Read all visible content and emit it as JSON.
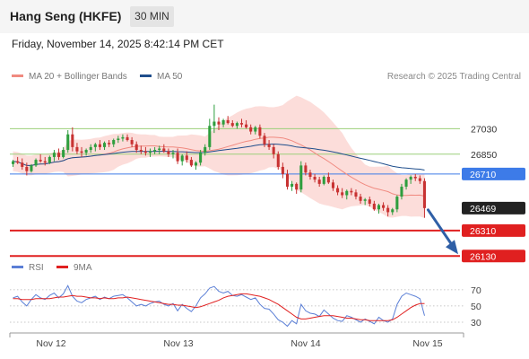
{
  "header": {
    "instrument": "Hang Seng (HKFE)",
    "timeframe": "30 MIN",
    "datetime": "Friday, November 14, 2025 8:42:14 PM CET",
    "copyright": "Research © 2025 Trading Central"
  },
  "legend": {
    "items": [
      {
        "label": "MA 20 + Bollinger Bands",
        "color": "#f08a80"
      },
      {
        "label": "MA 50",
        "color": "#1f4e8c"
      }
    ],
    "rsi_items": [
      {
        "label": "RSI",
        "color": "#5b7fd6"
      },
      {
        "label": "9MA",
        "color": "#e02020"
      }
    ]
  },
  "colors": {
    "up_candle": "#2e9e3e",
    "down_candle": "#c83232",
    "pivot": "#3d7be8",
    "resistance": "#9bcf7a",
    "support": "#e02020",
    "last_price": "#222222",
    "arrow": "#2f5fa6",
    "band": "#fbd7d4"
  },
  "chart_data": [
    {
      "type": "candlestick",
      "ylim": [
        26100,
        27280
      ],
      "x_ticks": [
        "Nov 12",
        "Nov 13",
        "Nov 14",
        "Nov 15"
      ],
      "levels": [
        {
          "value": 27030,
          "label": "27030",
          "kind": "resistance"
        },
        {
          "value": 26850,
          "label": "26850",
          "kind": "resistance"
        },
        {
          "value": 26710,
          "label": "26710",
          "kind": "pivot"
        },
        {
          "value": 26469,
          "label": "26469",
          "kind": "last"
        },
        {
          "value": 26310,
          "label": "26310",
          "kind": "support"
        },
        {
          "value": 26130,
          "label": "26130",
          "kind": "support"
        }
      ],
      "candles": [
        [
          26780,
          26810,
          26760,
          26800
        ],
        [
          26800,
          26830,
          26780,
          26790
        ],
        [
          26790,
          26820,
          26740,
          26760
        ],
        [
          26760,
          26790,
          26700,
          26730
        ],
        [
          26730,
          26780,
          26720,
          26770
        ],
        [
          26770,
          26820,
          26760,
          26810
        ],
        [
          26810,
          26850,
          26790,
          26800
        ],
        [
          26800,
          26830,
          26770,
          26790
        ],
        [
          26790,
          26840,
          26780,
          26830
        ],
        [
          26830,
          26880,
          26800,
          26860
        ],
        [
          26860,
          26890,
          26810,
          26830
        ],
        [
          26830,
          26900,
          26820,
          26880
        ],
        [
          26880,
          27020,
          26860,
          26990
        ],
        [
          26990,
          27040,
          26870,
          26900
        ],
        [
          26900,
          26930,
          26850,
          26870
        ],
        [
          26870,
          26900,
          26830,
          26860
        ],
        [
          26860,
          26890,
          26840,
          26880
        ],
        [
          26880,
          26920,
          26860,
          26900
        ],
        [
          26900,
          26930,
          26870,
          26920
        ],
        [
          26920,
          26950,
          26880,
          26900
        ],
        [
          26900,
          26940,
          26880,
          26930
        ],
        [
          26930,
          26950,
          26900,
          26920
        ],
        [
          26920,
          26960,
          26900,
          26950
        ],
        [
          26950,
          26980,
          26930,
          26960
        ],
        [
          26960,
          26990,
          26940,
          26970
        ],
        [
          26970,
          26990,
          26940,
          26950
        ],
        [
          26950,
          26970,
          26900,
          26920
        ],
        [
          26920,
          26940,
          26860,
          26880
        ],
        [
          26880,
          26910,
          26850,
          26870
        ],
        [
          26870,
          26900,
          26840,
          26860
        ],
        [
          26860,
          26890,
          26830,
          26870
        ],
        [
          26870,
          26900,
          26850,
          26880
        ],
        [
          26880,
          26910,
          26850,
          26890
        ],
        [
          26890,
          26920,
          26860,
          26870
        ],
        [
          26870,
          26890,
          26830,
          26850
        ],
        [
          26850,
          26880,
          26820,
          26860
        ],
        [
          26860,
          26890,
          26780,
          26800
        ],
        [
          26800,
          26850,
          26770,
          26840
        ],
        [
          26840,
          26870,
          26790,
          26810
        ],
        [
          26810,
          26830,
          26760,
          26770
        ],
        [
          26770,
          26800,
          26740,
          26790
        ],
        [
          26790,
          26880,
          26770,
          26860
        ],
        [
          26860,
          26920,
          26840,
          26900
        ],
        [
          26900,
          27100,
          26880,
          27050
        ],
        [
          27050,
          27200,
          27000,
          27080
        ],
        [
          27080,
          27110,
          27020,
          27060
        ],
        [
          27060,
          27100,
          27040,
          27090
        ],
        [
          27090,
          27120,
          27060,
          27070
        ],
        [
          27070,
          27090,
          27040,
          27050
        ],
        [
          27050,
          27080,
          27030,
          27070
        ],
        [
          27070,
          27100,
          27040,
          27060
        ],
        [
          27060,
          27090,
          27030,
          27040
        ],
        [
          27040,
          27060,
          26990,
          27010
        ],
        [
          27010,
          27050,
          26990,
          27040
        ],
        [
          27040,
          27060,
          26960,
          26980
        ],
        [
          26980,
          27000,
          26900,
          26920
        ],
        [
          26920,
          26950,
          26880,
          26900
        ],
        [
          26900,
          26920,
          26820,
          26850
        ],
        [
          26850,
          26870,
          26740,
          26760
        ],
        [
          26760,
          26790,
          26680,
          26710
        ],
        [
          26710,
          26740,
          26600,
          26620
        ],
        [
          26620,
          26660,
          26590,
          26640
        ],
        [
          26640,
          26650,
          26570,
          26600
        ],
        [
          26600,
          26800,
          26580,
          26770
        ],
        [
          26770,
          26790,
          26700,
          26720
        ],
        [
          26720,
          26740,
          26670,
          26690
        ],
        [
          26690,
          26710,
          26650,
          26670
        ],
        [
          26670,
          26690,
          26620,
          26640
        ],
        [
          26640,
          26700,
          26630,
          26690
        ],
        [
          26690,
          26720,
          26640,
          26650
        ],
        [
          26650,
          26670,
          26590,
          26610
        ],
        [
          26610,
          26630,
          26560,
          26580
        ],
        [
          26580,
          26610,
          26540,
          26560
        ],
        [
          26560,
          26600,
          26530,
          26590
        ],
        [
          26590,
          26610,
          26560,
          26580
        ],
        [
          26580,
          26600,
          26530,
          26550
        ],
        [
          26550,
          26570,
          26500,
          26520
        ],
        [
          26520,
          26540,
          26490,
          26530
        ],
        [
          26530,
          26550,
          26480,
          26500
        ],
        [
          26500,
          26520,
          26450,
          26460
        ],
        [
          26460,
          26500,
          26430,
          26490
        ],
        [
          26490,
          26510,
          26450,
          26470
        ],
        [
          26470,
          26490,
          26410,
          26440
        ],
        [
          26440,
          26470,
          26420,
          26460
        ],
        [
          26460,
          26560,
          26440,
          26550
        ],
        [
          26550,
          26640,
          26530,
          26620
        ],
        [
          26620,
          26680,
          26600,
          26670
        ],
        [
          26670,
          26700,
          26640,
          26690
        ],
        [
          26690,
          26710,
          26660,
          26680
        ],
        [
          26680,
          26700,
          26640,
          26660
        ],
        [
          26660,
          26680,
          26400,
          26469
        ]
      ]
    },
    {
      "type": "line",
      "ylim": [
        20,
        82
      ],
      "y_ticks": [
        70,
        50,
        30
      ],
      "series": [
        {
          "name": "RSI",
          "values": [
            60,
            62,
            55,
            50,
            58,
            64,
            60,
            58,
            63,
            66,
            60,
            65,
            75,
            62,
            56,
            54,
            58,
            60,
            62,
            58,
            61,
            59,
            62,
            63,
            64,
            60,
            55,
            50,
            52,
            50,
            53,
            55,
            56,
            52,
            50,
            53,
            44,
            52,
            47,
            43,
            50,
            60,
            65,
            72,
            74,
            68,
            66,
            68,
            63,
            62,
            64,
            61,
            58,
            60,
            52,
            47,
            46,
            40,
            33,
            30,
            25,
            32,
            28,
            52,
            44,
            41,
            40,
            37,
            45,
            40,
            35,
            32,
            31,
            38,
            36,
            33,
            30,
            34,
            31,
            28,
            36,
            32,
            30,
            34,
            52,
            62,
            66,
            64,
            62,
            59,
            38
          ]
        },
        {
          "name": "9MA",
          "values": [
            59,
            59,
            58,
            58,
            58,
            59,
            59,
            59,
            59,
            60,
            61,
            61,
            62,
            63,
            62,
            62,
            61,
            60,
            60,
            59,
            60,
            59,
            59,
            60,
            60,
            61,
            60,
            59,
            58,
            57,
            56,
            55,
            54,
            53,
            52,
            52,
            51,
            51,
            50,
            49,
            48,
            49,
            51,
            53,
            55,
            57,
            60,
            62,
            63,
            64,
            65,
            65,
            64,
            63,
            62,
            60,
            58,
            55,
            52,
            48,
            44,
            40,
            36,
            34,
            34,
            35,
            36,
            37,
            38,
            38,
            38,
            37,
            36,
            35,
            35,
            34,
            33,
            33,
            32,
            32,
            32,
            32,
            32,
            33,
            36,
            40,
            44,
            48,
            51,
            53,
            53
          ]
        }
      ]
    }
  ]
}
